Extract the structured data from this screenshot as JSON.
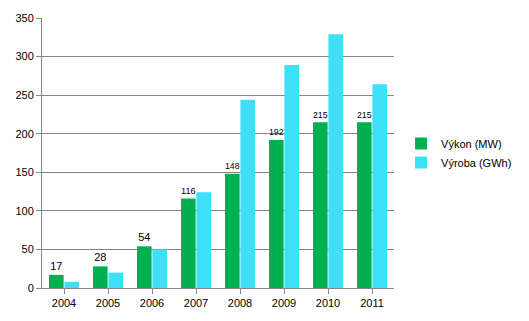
{
  "chart_data": {
    "type": "bar",
    "categories": [
      "2004",
      "2005",
      "2006",
      "2007",
      "2008",
      "2009",
      "2010",
      "2011"
    ],
    "series": [
      {
        "name": "Výkon (MW)",
        "color": "#00b050",
        "values": [
          17,
          28,
          54,
          116,
          148,
          192,
          215,
          215
        ],
        "data_labels": true
      },
      {
        "name": "Výroba (GWh)",
        "color": "#3ee0f5",
        "values": [
          8,
          20,
          50,
          124,
          244,
          289,
          329,
          264
        ]
      }
    ],
    "ylim": [
      0,
      350
    ],
    "yticks": [
      0,
      50,
      100,
      150,
      200,
      250,
      300,
      350
    ],
    "grid": true,
    "legend": "right"
  }
}
